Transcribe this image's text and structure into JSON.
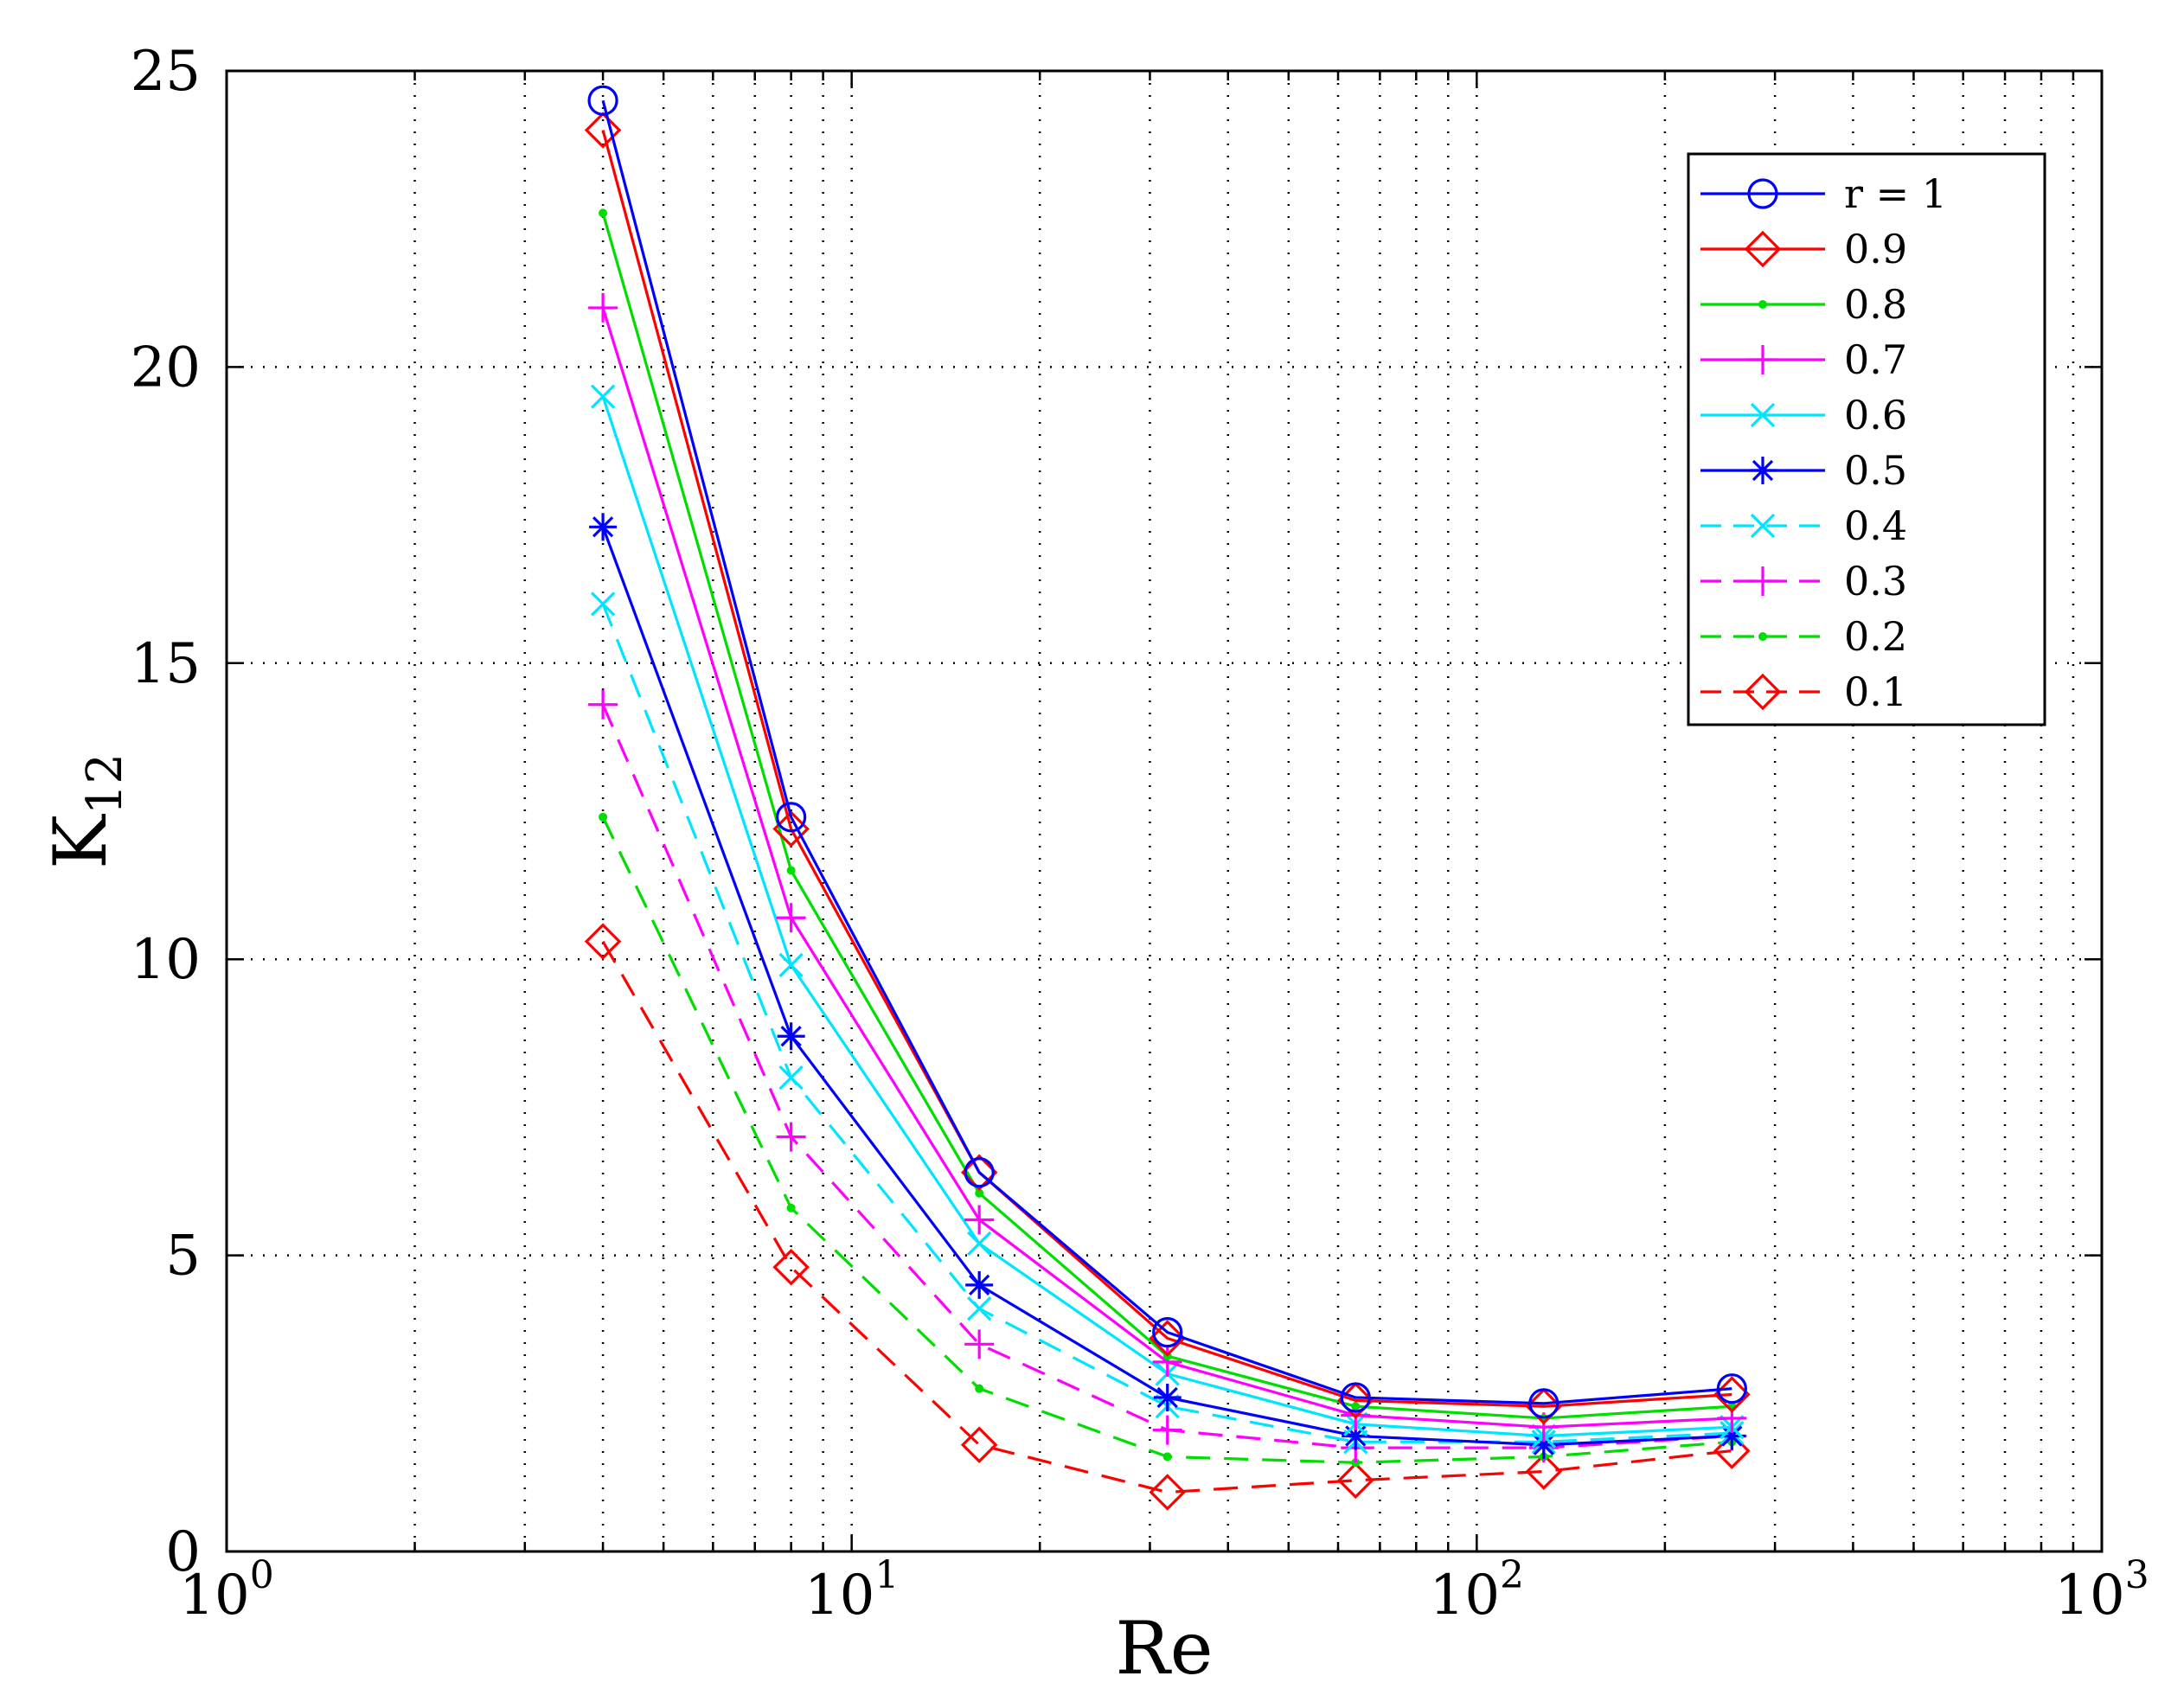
{
  "chart_data": {
    "type": "line",
    "xscale": "log",
    "xlabel": "Re",
    "ylabel_main": "K",
    "ylabel_sub": "12",
    "xlim": [
      1,
      1000
    ],
    "ylim": [
      0,
      25
    ],
    "grid": true,
    "grid_style": "dotted",
    "legend_position": "top-right",
    "x_ticks": [
      {
        "value": 1,
        "base": "10",
        "exp": "0"
      },
      {
        "value": 10,
        "base": "10",
        "exp": "1"
      },
      {
        "value": 100,
        "base": "10",
        "exp": "2"
      },
      {
        "value": 1000,
        "base": "10",
        "exp": "3"
      }
    ],
    "y_ticks": [
      {
        "value": 0,
        "label": "0"
      },
      {
        "value": 5,
        "label": "5"
      },
      {
        "value": 10,
        "label": "10"
      },
      {
        "value": 15,
        "label": "15"
      },
      {
        "value": 20,
        "label": "20"
      },
      {
        "value": 25,
        "label": "25"
      }
    ],
    "x": [
      4,
      8,
      16,
      32,
      64,
      128,
      256
    ],
    "series": [
      {
        "name": "r = 1",
        "color": "#0000ff",
        "dash": "solid",
        "marker": "circle",
        "values": [
          24.5,
          12.4,
          6.4,
          3.7,
          2.6,
          2.5,
          2.75
        ]
      },
      {
        "name": "0.9",
        "color": "#ff0000",
        "dash": "solid",
        "marker": "diamond",
        "values": [
          24.0,
          12.2,
          6.4,
          3.6,
          2.55,
          2.45,
          2.65
        ]
      },
      {
        "name": "0.8",
        "color": "#00dd00",
        "dash": "solid",
        "marker": "dot",
        "values": [
          22.6,
          11.5,
          6.05,
          3.3,
          2.45,
          2.25,
          2.45
        ]
      },
      {
        "name": "0.7",
        "color": "#ff00ff",
        "dash": "solid",
        "marker": "plus",
        "values": [
          21.0,
          10.7,
          5.6,
          3.2,
          2.3,
          2.1,
          2.25
        ]
      },
      {
        "name": "0.6",
        "color": "#00e5ff",
        "dash": "solid",
        "marker": "x",
        "values": [
          19.5,
          9.9,
          5.2,
          3.0,
          2.15,
          1.95,
          2.1
        ]
      },
      {
        "name": "0.5",
        "color": "#0000ff",
        "dash": "solid",
        "marker": "star",
        "values": [
          17.3,
          8.7,
          4.5,
          2.6,
          1.95,
          1.8,
          1.95
        ]
      },
      {
        "name": "0.4",
        "color": "#00e5ff",
        "dash": "dashed",
        "marker": "x",
        "values": [
          16.0,
          8.0,
          4.1,
          2.45,
          1.85,
          1.85,
          2.0
        ]
      },
      {
        "name": "0.3",
        "color": "#ff00ff",
        "dash": "dashed",
        "marker": "plus",
        "values": [
          14.3,
          7.0,
          3.5,
          2.05,
          1.75,
          1.75,
          1.95
        ]
      },
      {
        "name": "0.2",
        "color": "#00dd00",
        "dash": "dashed",
        "marker": "dot",
        "values": [
          12.4,
          5.8,
          2.75,
          1.6,
          1.5,
          1.6,
          1.85
        ]
      },
      {
        "name": "0.1",
        "color": "#ff0000",
        "dash": "dashed",
        "marker": "diamond",
        "values": [
          10.3,
          4.8,
          1.8,
          1.0,
          1.2,
          1.35,
          1.7
        ]
      }
    ]
  }
}
